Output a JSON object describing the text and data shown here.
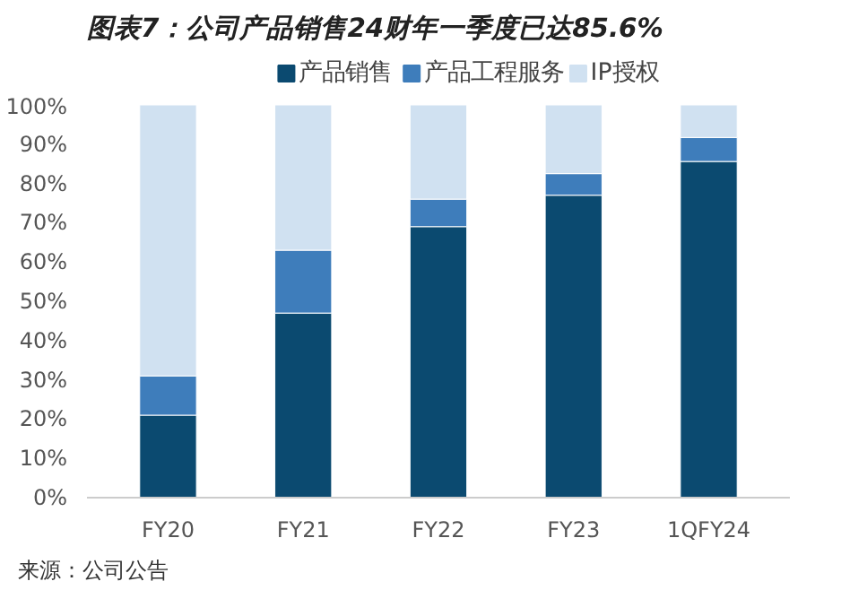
{
  "chart_data": {
    "type": "bar",
    "title": "图表7：公司产品销售24财年一季度已达85.6%",
    "stacked": true,
    "categories": [
      "FY20",
      "FY21",
      "FY22",
      "FY23",
      "1QFY24"
    ],
    "series": [
      {
        "name": "产品销售",
        "color": "#0b4a70",
        "values": [
          21,
          47,
          69,
          77,
          85.6
        ]
      },
      {
        "name": "产品工程服务",
        "color": "#3e7dbb",
        "values": [
          10,
          16,
          7,
          5.5,
          6.1
        ]
      },
      {
        "name": "IP授权",
        "color": "#d0e1f1",
        "values": [
          69,
          37,
          24,
          17.5,
          8.3
        ]
      }
    ],
    "ylim": [
      0,
      100
    ],
    "yticks": [
      {
        "value": 0,
        "label": "0%"
      },
      {
        "value": 10,
        "label": "10%"
      },
      {
        "value": 20,
        "label": "20%"
      },
      {
        "value": 30,
        "label": "30%"
      },
      {
        "value": 40,
        "label": "40%"
      },
      {
        "value": 50,
        "label": "50%"
      },
      {
        "value": 60,
        "label": "60%"
      },
      {
        "value": 70,
        "label": "70%"
      },
      {
        "value": 80,
        "label": "80%"
      },
      {
        "value": 90,
        "label": "90%"
      },
      {
        "value": 100,
        "label": "100%"
      }
    ],
    "grid": false,
    "legend": "top",
    "annotations": [
      "来源：公司公告"
    ]
  }
}
